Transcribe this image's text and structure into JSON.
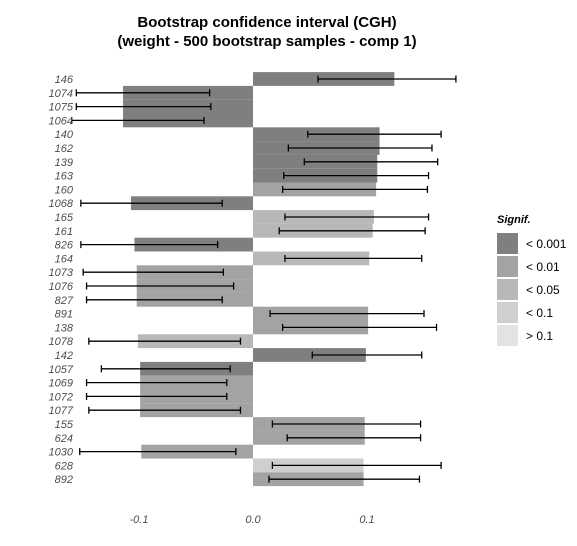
{
  "chart_data": {
    "type": "bar",
    "orientation": "horizontal",
    "title": "Bootstrap confidence interval (CGH)",
    "subtitle": "(weight - 500 bootstrap samples - comp 1)",
    "categories": [
      "146",
      "1074",
      "1075",
      "1064",
      "140",
      "162",
      "139",
      "163",
      "160",
      "1068",
      "165",
      "161",
      "826",
      "164",
      "1073",
      "1076",
      "827",
      "891",
      "138",
      "1078",
      "142",
      "1057",
      "1069",
      "1072",
      "1077",
      "155",
      "624",
      "1030",
      "628",
      "892"
    ],
    "values": [
      0.124,
      -0.114,
      -0.114,
      -0.114,
      0.111,
      0.111,
      0.109,
      0.109,
      0.108,
      -0.107,
      0.106,
      0.105,
      -0.104,
      0.102,
      -0.102,
      -0.102,
      -0.102,
      0.101,
      0.101,
      -0.101,
      0.099,
      -0.099,
      -0.099,
      -0.099,
      -0.099,
      0.098,
      0.098,
      -0.098,
      0.097,
      0.097
    ],
    "ci_lower": [
      0.057,
      -0.155,
      -0.155,
      -0.159,
      0.048,
      0.031,
      0.045,
      0.027,
      0.026,
      -0.151,
      0.028,
      0.023,
      -0.151,
      0.028,
      -0.149,
      -0.146,
      -0.146,
      0.015,
      0.026,
      -0.144,
      0.052,
      -0.133,
      -0.146,
      -0.146,
      -0.144,
      0.017,
      0.03,
      -0.152,
      0.017,
      0.014
    ],
    "ci_upper": [
      0.178,
      -0.038,
      -0.037,
      -0.043,
      0.165,
      0.157,
      0.162,
      0.154,
      0.153,
      -0.027,
      0.154,
      0.151,
      -0.031,
      0.148,
      -0.026,
      -0.017,
      -0.027,
      0.15,
      0.161,
      -0.011,
      0.148,
      -0.02,
      -0.023,
      -0.023,
      -0.011,
      0.147,
      0.147,
      -0.015,
      0.165,
      0.146
    ],
    "significance": [
      "< 0.001",
      "< 0.001",
      "< 0.001",
      "< 0.001",
      "< 0.001",
      "< 0.001",
      "< 0.001",
      "< 0.001",
      "< 0.01",
      "< 0.001",
      "< 0.05",
      "< 0.05",
      "< 0.001",
      "< 0.05",
      "< 0.01",
      "< 0.01",
      "< 0.01",
      "< 0.01",
      "< 0.01",
      "< 0.05",
      "< 0.001",
      "< 0.001",
      "< 0.01",
      "< 0.01",
      "< 0.01",
      "< 0.01",
      "< 0.01",
      "< 0.01",
      "< 0.1",
      "< 0.01"
    ],
    "x_ticks": [
      "-0.1",
      "0.0",
      "0.1"
    ],
    "x_tick_values": [
      -0.1,
      0.0,
      0.1
    ],
    "xlim": [
      -0.185,
      0.205
    ],
    "xlabel": "",
    "ylabel": "",
    "grid": false,
    "legend": {
      "title": "Signif.",
      "placement": "right",
      "entries": [
        {
          "label": "< 0.001",
          "color": "#7f7f7f"
        },
        {
          "label": "< 0.01",
          "color": "#a3a3a3"
        },
        {
          "label": "< 0.05",
          "color": "#b8b8b8"
        },
        {
          "label": "< 0.1",
          "color": "#cfcfcf"
        },
        {
          "label": "> 0.1",
          "color": "#e3e3e3"
        }
      ]
    },
    "error_bar_color": "#000000"
  }
}
